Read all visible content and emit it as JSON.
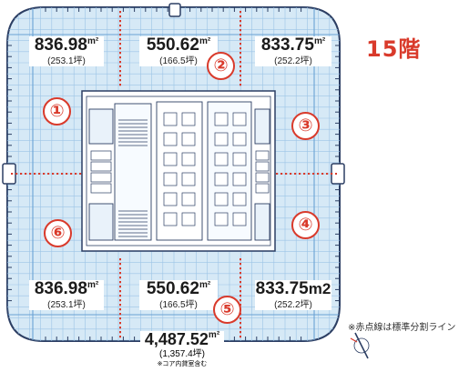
{
  "floor_label": "15階",
  "note": "※赤点線は標準分割ライン",
  "units": [
    {
      "zone": "①",
      "area": "836.98",
      "unit": "m²",
      "tsubo": "(253.1坪)"
    },
    {
      "zone": "②",
      "area": "550.62",
      "unit": "m²",
      "tsubo": "(166.5坪)"
    },
    {
      "zone": "③",
      "area": "833.75",
      "unit": "m²",
      "tsubo": "(252.2坪)"
    },
    {
      "zone": "④",
      "area": "833.75",
      "unit": "m2",
      "tsubo": "(252.2坪)"
    },
    {
      "zone": "⑤",
      "area": "550.62",
      "unit": "m²",
      "tsubo": "(166.5坪)"
    },
    {
      "zone": "⑥",
      "area": "836.98",
      "unit": "m²",
      "tsubo": "(253.1坪)"
    }
  ],
  "total": {
    "area": "4,487.52",
    "unit": "m²",
    "tsubo": "(1,357.4坪)",
    "note": "※コア内貸室含む"
  },
  "colors": {
    "floor_fill": "#d6e9f6",
    "grid": "#7fb3de",
    "divider": "#d93a2b",
    "accent": "#d93a2b",
    "core_line": "#2c3e63"
  }
}
